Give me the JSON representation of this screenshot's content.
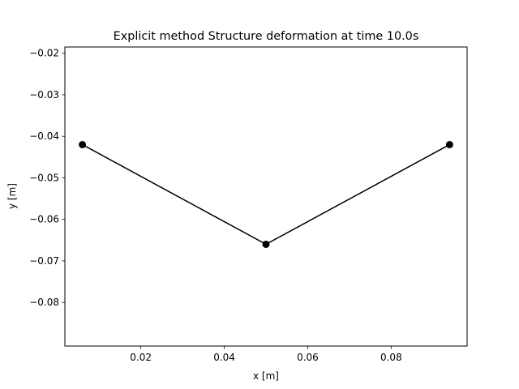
{
  "chart_data": {
    "type": "line",
    "title": "Explicit method Structure deformation at time 10.0s",
    "xlabel": "x [m]",
    "ylabel": "y [m]",
    "xlim": [
      0.0018,
      0.0982
    ],
    "ylim": [
      -0.0905,
      -0.0185
    ],
    "xticks": [
      0.02,
      0.04,
      0.06,
      0.08
    ],
    "xtick_labels": [
      "0.02",
      "0.04",
      "0.06",
      "0.08"
    ],
    "yticks": [
      -0.02,
      -0.03,
      -0.04,
      -0.05,
      -0.06,
      -0.07,
      -0.08
    ],
    "ytick_labels": [
      "−0.02",
      "−0.03",
      "−0.04",
      "−0.05",
      "−0.06",
      "−0.07",
      "−0.08"
    ],
    "grid": false,
    "series": [
      {
        "color": "#000000",
        "marker": "circle",
        "points": [
          {
            "x": 0.006,
            "y": -0.042
          },
          {
            "x": 0.05,
            "y": -0.066
          },
          {
            "x": 0.094,
            "y": -0.042
          }
        ]
      }
    ]
  }
}
